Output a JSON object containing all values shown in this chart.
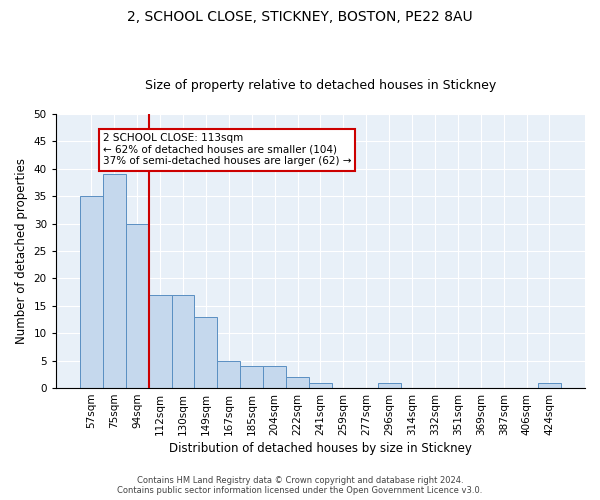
{
  "title": "2, SCHOOL CLOSE, STICKNEY, BOSTON, PE22 8AU",
  "subtitle": "Size of property relative to detached houses in Stickney",
  "xlabel": "Distribution of detached houses by size in Stickney",
  "ylabel": "Number of detached properties",
  "categories": [
    "57sqm",
    "75sqm",
    "94sqm",
    "112sqm",
    "130sqm",
    "149sqm",
    "167sqm",
    "185sqm",
    "204sqm",
    "222sqm",
    "241sqm",
    "259sqm",
    "277sqm",
    "296sqm",
    "314sqm",
    "332sqm",
    "351sqm",
    "369sqm",
    "387sqm",
    "406sqm",
    "424sqm"
  ],
  "values": [
    35,
    39,
    30,
    17,
    17,
    13,
    5,
    4,
    4,
    2,
    1,
    0,
    0,
    1,
    0,
    0,
    0,
    0,
    0,
    0,
    1
  ],
  "bar_color": "#c5d8ed",
  "bar_edge_color": "#5a8fc2",
  "property_line_index": 3,
  "property_label": "2 SCHOOL CLOSE: 113sqm",
  "annotation_line1": "← 62% of detached houses are smaller (104)",
  "annotation_line2": "37% of semi-detached houses are larger (62) →",
  "annotation_box_color": "#ffffff",
  "annotation_box_edge_color": "#cc0000",
  "property_line_color": "#cc0000",
  "ylim": [
    0,
    50
  ],
  "yticks": [
    0,
    5,
    10,
    15,
    20,
    25,
    30,
    35,
    40,
    45,
    50
  ],
  "background_color": "#e8f0f8",
  "footer_line1": "Contains HM Land Registry data © Crown copyright and database right 2024.",
  "footer_line2": "Contains public sector information licensed under the Open Government Licence v3.0.",
  "title_fontsize": 10,
  "subtitle_fontsize": 9,
  "xlabel_fontsize": 8.5,
  "ylabel_fontsize": 8.5,
  "tick_fontsize": 7.5,
  "annot_fontsize": 7.5,
  "footer_fontsize": 6
}
